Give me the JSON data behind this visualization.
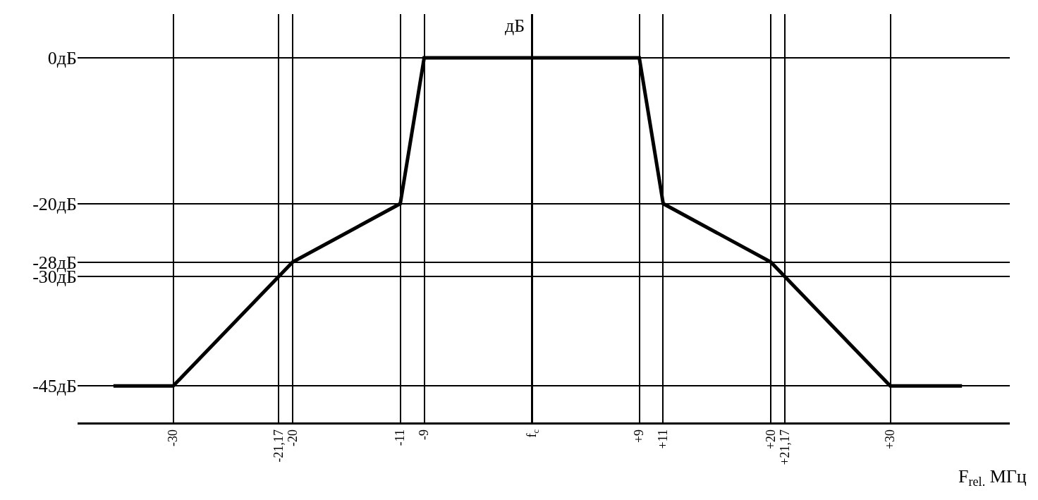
{
  "chart_data": {
    "type": "line",
    "xlabel": "F$_{rel.}$ МГц",
    "ylabel": "дБ",
    "x": [
      -35,
      -30,
      -20,
      -11,
      -9,
      9,
      11,
      20,
      30,
      36
    ],
    "series": [
      {
        "color": "#000000",
        "values": [
          -45,
          -45,
          -28,
          -20,
          0,
          0,
          -20,
          -28,
          -45,
          -45
        ]
      }
    ],
    "xlim": [
      -38,
      40
    ],
    "ylim": [
      -50,
      6
    ],
    "xticks": [
      {
        "value": -30,
        "label": "-30"
      },
      {
        "value": -21.17,
        "label": "-21,17"
      },
      {
        "value": -20,
        "label": "-20"
      },
      {
        "value": -11,
        "label": "-11"
      },
      {
        "value": -9,
        "label": "-9"
      },
      {
        "value": 0,
        "label": "f$_{c}$"
      },
      {
        "value": 9,
        "label": "+9"
      },
      {
        "value": 11,
        "label": "+11"
      },
      {
        "value": 20,
        "label": "+20"
      },
      {
        "value": 21.17,
        "label": "+21,17"
      },
      {
        "value": 30,
        "label": "+30"
      }
    ],
    "yticks": [
      {
        "value": 0,
        "label": "0дБ"
      },
      {
        "value": -20,
        "label": "-20дБ"
      },
      {
        "value": -28,
        "label": "-28дБ"
      },
      {
        "value": -30,
        "label": "-30дБ"
      },
      {
        "value": -45,
        "label": "-45дБ"
      }
    ],
    "grid": true,
    "marker": "none",
    "line_style": "solid"
  }
}
